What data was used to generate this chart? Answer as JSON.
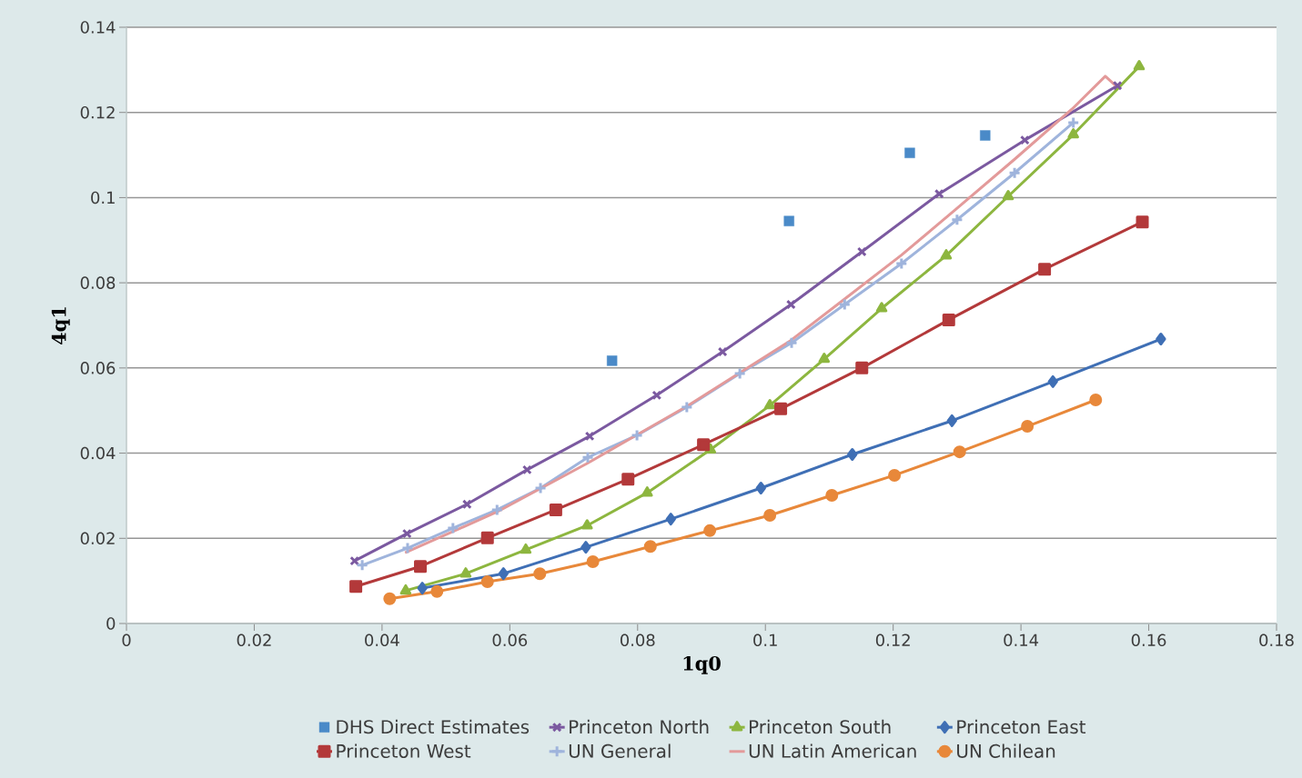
{
  "chart_data": {
    "type": "line",
    "xlabel": "1q0",
    "ylabel": "4q1",
    "xlim": [
      0,
      0.18
    ],
    "xticks": [
      0,
      0.02,
      0.04,
      0.06,
      0.08,
      0.1,
      0.12,
      0.14,
      0.16,
      0.18
    ],
    "ylim": [
      0,
      0.14
    ],
    "yticks": [
      0,
      0.02,
      0.04,
      0.06,
      0.08,
      0.1,
      0.12,
      0.14
    ],
    "grid": "y",
    "legend": "bottom",
    "line_style": "solid",
    "series": [
      {
        "name": "DHS Direct Estimates",
        "type": "scatter",
        "marker": "square",
        "color": "#4a8ac8",
        "x": [
          0.076,
          0.1037,
          0.1226,
          0.1344
        ],
        "values": [
          0.0617,
          0.0945,
          0.1105,
          0.1146
        ]
      },
      {
        "name": "Princeton North",
        "marker": "cross",
        "color": "#7b59a0",
        "x": [
          0.0357,
          0.0439,
          0.0533,
          0.0627,
          0.0725,
          0.083,
          0.0933,
          0.104,
          0.1151,
          0.1272,
          0.1406,
          0.1551
        ],
        "values": [
          0.0147,
          0.0211,
          0.028,
          0.0361,
          0.044,
          0.0536,
          0.0638,
          0.0749,
          0.0873,
          0.1009,
          0.1135,
          0.1263
        ]
      },
      {
        "name": "Princeton South",
        "marker": "triangle",
        "color": "#8db63f",
        "x": [
          0.0437,
          0.0531,
          0.0625,
          0.0721,
          0.0815,
          0.0914,
          0.1007,
          0.1092,
          0.1182,
          0.1283,
          0.138,
          0.1482,
          0.1585
        ],
        "values": [
          0.0077,
          0.0117,
          0.0173,
          0.023,
          0.0307,
          0.0408,
          0.0512,
          0.0621,
          0.074,
          0.0864,
          0.1003,
          0.1148,
          0.1308
        ]
      },
      {
        "name": "Princeton East",
        "marker": "diamond",
        "color": "#3f6fb5",
        "x": [
          0.0463,
          0.059,
          0.0719,
          0.0852,
          0.0993,
          0.1136,
          0.1292,
          0.145,
          0.1619
        ],
        "values": [
          0.0083,
          0.0117,
          0.0179,
          0.0245,
          0.0318,
          0.0397,
          0.0476,
          0.0568,
          0.0668
        ]
      },
      {
        "name": "Princeton West",
        "marker": "square",
        "color": "#b3393a",
        "x": [
          0.0359,
          0.046,
          0.0565,
          0.0672,
          0.0785,
          0.0903,
          0.1024,
          0.1151,
          0.1287,
          0.1437,
          0.159
        ],
        "values": [
          0.0087,
          0.0134,
          0.0201,
          0.0267,
          0.0339,
          0.042,
          0.0504,
          0.06,
          0.0713,
          0.0832,
          0.0943
        ]
      },
      {
        "name": "UN General",
        "marker": "plus",
        "color": "#9fb4dc",
        "x": [
          0.0369,
          0.044,
          0.0511,
          0.058,
          0.0648,
          0.0722,
          0.0799,
          0.0877,
          0.096,
          0.1041,
          0.1124,
          0.1213,
          0.13,
          0.139,
          0.1482
        ],
        "values": [
          0.0137,
          0.0177,
          0.0224,
          0.0267,
          0.0318,
          0.039,
          0.0442,
          0.0508,
          0.0587,
          0.0659,
          0.0749,
          0.0845,
          0.0948,
          0.1058,
          0.1176
        ]
      },
      {
        "name": "UN Latin American",
        "marker": "none",
        "color": "#e39a9a",
        "x": [
          0.0436,
          0.058,
          0.072,
          0.0877,
          0.104,
          0.1124,
          0.1213,
          0.13,
          0.139,
          0.148,
          0.1532,
          0.1548
        ],
        "values": [
          0.0166,
          0.0262,
          0.0375,
          0.051,
          0.0665,
          0.0762,
          0.0865,
          0.0975,
          0.109,
          0.1208,
          0.1285,
          0.1263
        ]
      },
      {
        "name": "UN Chilean",
        "marker": "circle",
        "color": "#e8883a",
        "x": [
          0.0412,
          0.0486,
          0.0565,
          0.0647,
          0.073,
          0.082,
          0.0913,
          0.1007,
          0.1104,
          0.1202,
          0.1304,
          0.141,
          0.1517
        ],
        "values": [
          0.0058,
          0.0075,
          0.0098,
          0.0117,
          0.0145,
          0.0181,
          0.0218,
          0.0254,
          0.0301,
          0.0348,
          0.0403,
          0.0463,
          0.0525
        ]
      }
    ]
  }
}
